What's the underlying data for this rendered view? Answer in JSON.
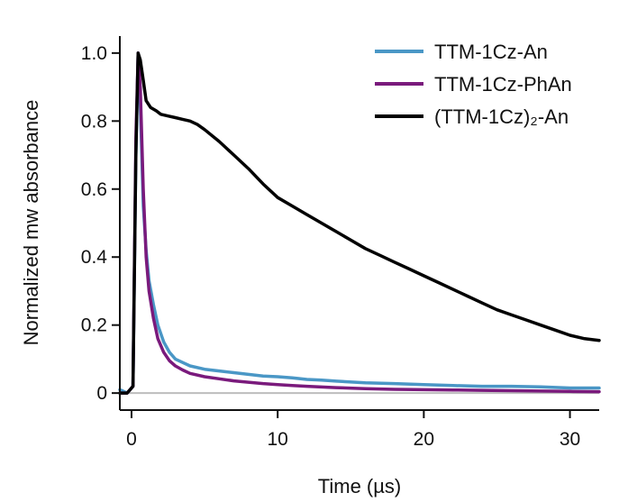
{
  "chart_data": {
    "type": "line",
    "xlabel": "Time (µs)",
    "ylabel": "Normalized mw absorbance",
    "xlim": [
      -0.8,
      32
    ],
    "ylim": [
      -0.05,
      1.05
    ],
    "xticks": [
      0,
      10,
      20,
      30
    ],
    "xtick_labels": [
      "0",
      "10",
      "20",
      "30"
    ],
    "yticks": [
      0,
      0.2,
      0.4,
      0.6,
      0.8,
      1.0
    ],
    "ytick_labels": [
      "0",
      "0.2",
      "0.4",
      "0.6",
      "0.8",
      "1.0"
    ],
    "zero_line": true,
    "grid": false,
    "legend_position": "top-right",
    "series": [
      {
        "name": "TTM-1Cz-An",
        "color": "#4a97c6",
        "x": [
          -0.8,
          -0.3,
          0.1,
          0.3,
          0.45,
          0.6,
          0.8,
          1.0,
          1.2,
          1.5,
          1.8,
          2.2,
          2.6,
          3.0,
          3.5,
          4.0,
          5.0,
          6.0,
          7.0,
          8.0,
          9.0,
          10.0,
          11.0,
          12.0,
          13.0,
          14.0,
          16.0,
          18.0,
          20.0,
          22.0,
          24.0,
          26.0,
          28.0,
          30.0,
          32.0
        ],
        "y": [
          0.01,
          0.0,
          0.02,
          0.7,
          1.0,
          0.85,
          0.55,
          0.42,
          0.33,
          0.26,
          0.2,
          0.15,
          0.12,
          0.1,
          0.09,
          0.08,
          0.07,
          0.065,
          0.06,
          0.055,
          0.05,
          0.048,
          0.045,
          0.04,
          0.038,
          0.035,
          0.03,
          0.028,
          0.025,
          0.022,
          0.02,
          0.02,
          0.018,
          0.015,
          0.015
        ]
      },
      {
        "name": "TTM-1Cz-PhAn",
        "color": "#7a1a7c",
        "x": [
          -0.8,
          -0.3,
          0.1,
          0.3,
          0.45,
          0.6,
          0.8,
          1.0,
          1.2,
          1.5,
          1.8,
          2.2,
          2.6,
          3.0,
          3.5,
          4.0,
          5.0,
          6.0,
          7.0,
          8.0,
          9.0,
          10.0,
          11.0,
          12.0,
          14.0,
          16.0,
          18.0,
          20.0,
          22.0,
          24.0,
          26.0,
          28.0,
          30.0,
          32.0
        ],
        "y": [
          0.0,
          0.0,
          0.02,
          0.75,
          1.0,
          0.9,
          0.6,
          0.4,
          0.3,
          0.22,
          0.16,
          0.12,
          0.095,
          0.08,
          0.068,
          0.058,
          0.048,
          0.042,
          0.036,
          0.032,
          0.028,
          0.025,
          0.022,
          0.02,
          0.016,
          0.013,
          0.011,
          0.01,
          0.009,
          0.008,
          0.007,
          0.006,
          0.005,
          0.004
        ]
      },
      {
        "name": "(TTM-1Cz)₂-An",
        "color": "#000000",
        "x": [
          -0.8,
          -0.3,
          0.1,
          0.3,
          0.45,
          0.6,
          0.8,
          1.0,
          1.3,
          1.7,
          2.0,
          2.5,
          3.0,
          3.5,
          4.0,
          4.5,
          5.0,
          6.0,
          7.0,
          8.0,
          9.0,
          10.0,
          11.0,
          12.0,
          13.0,
          14.0,
          15.0,
          16.0,
          17.0,
          18.0,
          19.0,
          20.0,
          21.0,
          22.0,
          23.0,
          24.0,
          25.0,
          26.0,
          27.0,
          28.0,
          29.0,
          30.0,
          31.0,
          32.0
        ],
        "y": [
          0.0,
          0.0,
          0.02,
          0.7,
          1.0,
          0.98,
          0.92,
          0.86,
          0.84,
          0.83,
          0.82,
          0.815,
          0.81,
          0.805,
          0.8,
          0.79,
          0.775,
          0.74,
          0.7,
          0.66,
          0.615,
          0.575,
          0.55,
          0.525,
          0.5,
          0.475,
          0.45,
          0.425,
          0.405,
          0.385,
          0.365,
          0.345,
          0.325,
          0.305,
          0.285,
          0.265,
          0.245,
          0.23,
          0.215,
          0.2,
          0.185,
          0.17,
          0.16,
          0.155
        ]
      }
    ]
  }
}
